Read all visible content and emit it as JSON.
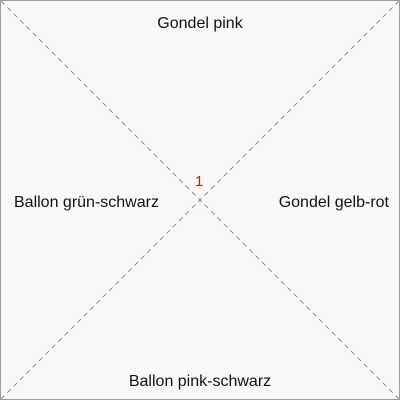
{
  "options": {
    "top": "Gondel pink",
    "left": "Ballon grün-schwarz",
    "right": "Gondel gelb-rot",
    "bottom": "Ballon pink-schwarz"
  },
  "center_marker": {
    "value": "1",
    "color": "#e01010"
  },
  "colors": {
    "background": "#f8f8f8",
    "border": "#9e9e9e",
    "diagonal": "#777777",
    "text": "#111111"
  }
}
